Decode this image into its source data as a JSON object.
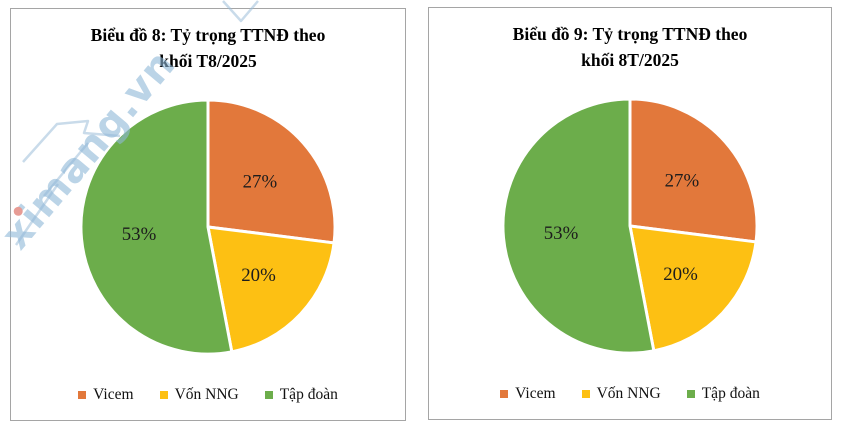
{
  "watermark": {
    "text": "ximang.vn",
    "color": "#8fb8d8",
    "i_dot_color": "#d85b4f"
  },
  "charts": [
    {
      "title_line1": "Biểu đồ 8: Tỷ trọng TTNĐ theo",
      "title_line2": "khối T8/2025",
      "chart_data": {
        "type": "pie",
        "title": "Biểu đồ 8: Tỷ trọng TTNĐ theo khối T8/2025",
        "labels": [
          "Vicem",
          "Vốn NNG",
          "Tập đoàn"
        ],
        "values": [
          27,
          20,
          53
        ],
        "unit": "%",
        "display_labels": [
          "27%",
          "20%",
          "53%"
        ],
        "colors": [
          "#e2783b",
          "#fdc013",
          "#6cad4b"
        ],
        "start_angle_deg": 0,
        "direction": "clockwise",
        "legend_position": "bottom",
        "slice_border_color": "#ffffff"
      }
    },
    {
      "title_line1": "Biểu đồ 9: Tỷ trọng TTNĐ theo",
      "title_line2": "khối 8T/2025",
      "chart_data": {
        "type": "pie",
        "title": "Biểu đồ 9: Tỷ trọng TTNĐ theo khối 8T/2025",
        "labels": [
          "Vicem",
          "Vốn NNG",
          "Tập đoàn"
        ],
        "values": [
          27,
          20,
          53
        ],
        "unit": "%",
        "display_labels": [
          "27%",
          "20%",
          "53%"
        ],
        "colors": [
          "#e2783b",
          "#fdc013",
          "#6cad4b"
        ],
        "start_angle_deg": 0,
        "direction": "clockwise",
        "legend_position": "bottom",
        "slice_border_color": "#ffffff"
      }
    }
  ]
}
